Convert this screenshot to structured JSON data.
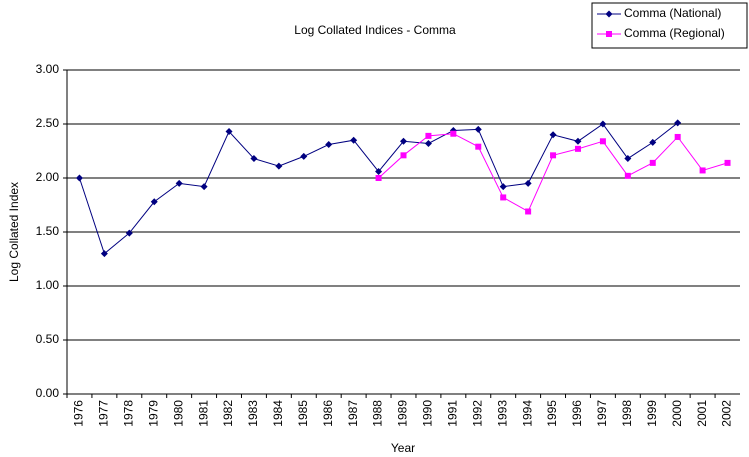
{
  "chart_data": {
    "type": "line",
    "title": "Log Collated Indices - Comma",
    "x_label": "Year",
    "y_label": "Log Collated Index",
    "categories": [
      "1976",
      "1977",
      "1978",
      "1979",
      "1980",
      "1981",
      "1982",
      "1983",
      "1984",
      "1985",
      "1986",
      "1987",
      "1988",
      "1989",
      "1990",
      "1991",
      "1992",
      "1993",
      "1994",
      "1995",
      "1996",
      "1997",
      "1998",
      "1999",
      "2000",
      "2001",
      "2002"
    ],
    "series": [
      {
        "name": "Comma (National)",
        "color": "#000080",
        "marker": "diamond",
        "values": [
          2.0,
          1.3,
          1.49,
          1.78,
          1.95,
          1.92,
          2.43,
          2.18,
          2.11,
          2.2,
          2.31,
          2.35,
          2.06,
          2.34,
          2.32,
          2.44,
          2.45,
          1.92,
          1.95,
          2.4,
          2.34,
          2.5,
          2.18,
          2.33,
          2.51,
          null,
          null
        ]
      },
      {
        "name": "Comma (Regional)",
        "color": "#ff00ff",
        "marker": "square",
        "values": [
          null,
          null,
          null,
          null,
          null,
          null,
          null,
          null,
          null,
          null,
          null,
          null,
          2.0,
          2.21,
          2.39,
          2.41,
          2.29,
          1.82,
          1.69,
          2.21,
          2.27,
          2.34,
          2.02,
          2.14,
          2.38,
          2.07,
          2.14
        ]
      }
    ],
    "ylim": [
      0,
      3
    ],
    "yticks": [
      {
        "value": 0,
        "label": "0.00"
      },
      {
        "value": 0.5,
        "label": "0.50"
      },
      {
        "value": 1,
        "label": "1.00"
      },
      {
        "value": 1.5,
        "label": "1.50"
      },
      {
        "value": 2,
        "label": "2.00"
      },
      {
        "value": 2.5,
        "label": "2.50"
      },
      {
        "value": 3,
        "label": "3.00"
      }
    ],
    "grid": true,
    "legend": "top-right"
  }
}
